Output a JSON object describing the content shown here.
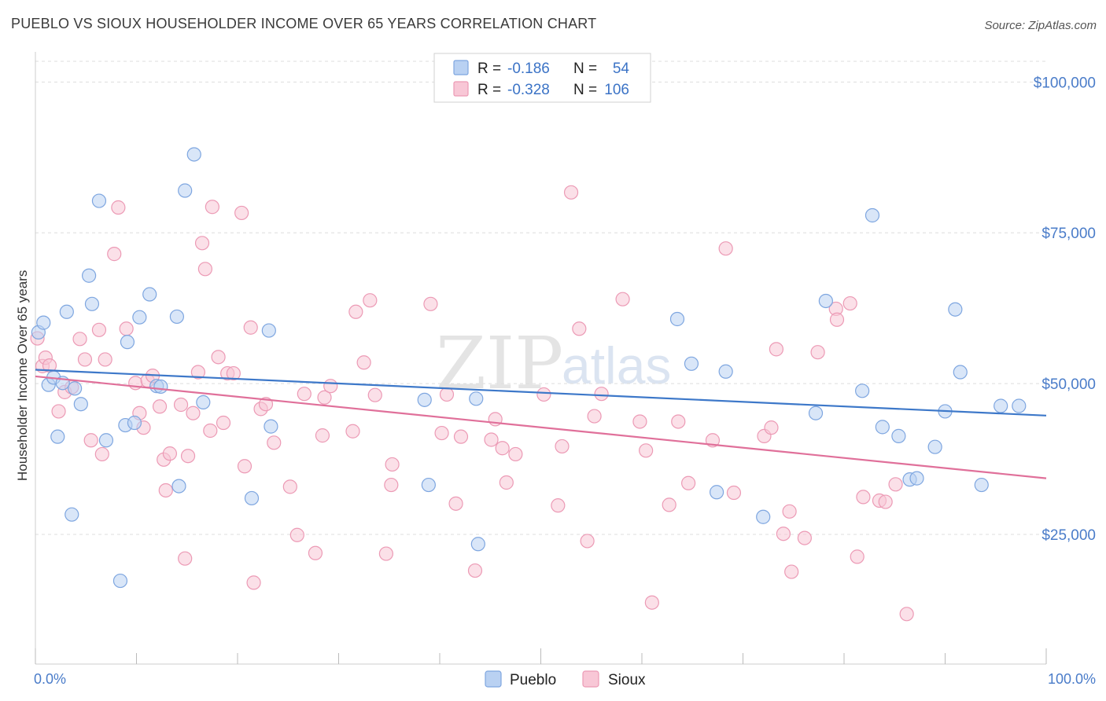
{
  "title": "PUEBLO VS SIOUX HOUSEHOLDER INCOME OVER 65 YEARS CORRELATION CHART",
  "source": "Source: ZipAtlas.com",
  "watermark": {
    "zip": "ZIP",
    "atlas": "atlas"
  },
  "colors": {
    "pueblo_fill": "#b9d1f2",
    "pueblo_stroke": "#7ea6e0",
    "pueblo_line": "#3d78c9",
    "sioux_fill": "#f8c7d6",
    "sioux_stroke": "#ec9ab5",
    "sioux_line": "#e0709a",
    "tick_text": "#4a7cc9",
    "grid": "#dddddd"
  },
  "legend": {
    "pueblo": {
      "r_label": "R =",
      "r_value": "-0.186",
      "n_label": "N =",
      "n_value": "54"
    },
    "sioux": {
      "r_label": "R =",
      "r_value": "-0.328",
      "n_label": "N =",
      "n_value": "106"
    }
  },
  "chart_data": {
    "type": "scatter",
    "title": "PUEBLO VS SIOUX HOUSEHOLDER INCOME OVER 65 YEARS CORRELATION CHART",
    "xlabel": "",
    "ylabel": "Householder Income Over 65 years",
    "xlim": [
      0,
      100
    ],
    "ylim": [
      3500,
      105000
    ],
    "x_tick_labels": [
      "0.0%",
      "100.0%"
    ],
    "y_ticks": [
      25000,
      50000,
      75000,
      100000
    ],
    "y_tick_labels": [
      "$25,000",
      "$50,000",
      "$75,000",
      "$100,000"
    ],
    "grid": true,
    "series": [
      {
        "name": "Pueblo",
        "trend": {
          "x": [
            0,
            100
          ],
          "y": [
            52300,
            44700
          ]
        },
        "points": [
          [
            0.3,
            58500
          ],
          [
            0.8,
            60100
          ],
          [
            1.3,
            49800
          ],
          [
            1.8,
            51000
          ],
          [
            2.2,
            41200
          ],
          [
            2.7,
            50100
          ],
          [
            3.1,
            61900
          ],
          [
            3.6,
            28300
          ],
          [
            3.9,
            49200
          ],
          [
            4.5,
            46600
          ],
          [
            5.3,
            67900
          ],
          [
            5.6,
            63200
          ],
          [
            6.3,
            80300
          ],
          [
            7.0,
            40600
          ],
          [
            8.4,
            17300
          ],
          [
            8.9,
            43100
          ],
          [
            9.1,
            56900
          ],
          [
            9.8,
            43500
          ],
          [
            10.3,
            61000
          ],
          [
            11.3,
            64800
          ],
          [
            12.0,
            49600
          ],
          [
            12.4,
            49500
          ],
          [
            14.0,
            61100
          ],
          [
            14.2,
            33000
          ],
          [
            14.8,
            82000
          ],
          [
            15.7,
            88000
          ],
          [
            16.6,
            46900
          ],
          [
            21.4,
            31000
          ],
          [
            23.1,
            58800
          ],
          [
            23.3,
            42900
          ],
          [
            38.5,
            47300
          ],
          [
            38.9,
            33200
          ],
          [
            43.6,
            47500
          ],
          [
            43.8,
            23400
          ],
          [
            63.5,
            60700
          ],
          [
            64.9,
            53300
          ],
          [
            67.4,
            32000
          ],
          [
            68.3,
            52000
          ],
          [
            72.0,
            27900
          ],
          [
            77.2,
            45100
          ],
          [
            78.2,
            63700
          ],
          [
            81.8,
            48800
          ],
          [
            82.8,
            77900
          ],
          [
            83.8,
            42800
          ],
          [
            85.4,
            41300
          ],
          [
            86.5,
            34100
          ],
          [
            87.2,
            34300
          ],
          [
            89.0,
            39500
          ],
          [
            90.0,
            45400
          ],
          [
            91.0,
            62300
          ],
          [
            91.5,
            51900
          ],
          [
            93.6,
            33200
          ],
          [
            95.5,
            46300
          ],
          [
            97.3,
            46300
          ]
        ]
      },
      {
        "name": "Sioux",
        "trend": {
          "x": [
            0,
            100
          ],
          "y": [
            51200,
            34300
          ]
        },
        "points": [
          [
            0.2,
            57500
          ],
          [
            0.7,
            52900
          ],
          [
            1.0,
            54300
          ],
          [
            1.4,
            53000
          ],
          [
            2.3,
            45400
          ],
          [
            2.9,
            48600
          ],
          [
            3.6,
            49400
          ],
          [
            4.4,
            57400
          ],
          [
            4.9,
            54000
          ],
          [
            5.5,
            40600
          ],
          [
            6.3,
            58900
          ],
          [
            6.6,
            38300
          ],
          [
            6.9,
            54000
          ],
          [
            7.8,
            71500
          ],
          [
            8.2,
            79200
          ],
          [
            9.0,
            59100
          ],
          [
            9.9,
            50100
          ],
          [
            10.3,
            45100
          ],
          [
            10.7,
            42700
          ],
          [
            11.1,
            50500
          ],
          [
            11.6,
            51300
          ],
          [
            12.3,
            46200
          ],
          [
            12.7,
            37400
          ],
          [
            12.9,
            32300
          ],
          [
            13.3,
            38400
          ],
          [
            14.4,
            46500
          ],
          [
            14.8,
            21000
          ],
          [
            15.1,
            38000
          ],
          [
            15.6,
            45100
          ],
          [
            16.1,
            51900
          ],
          [
            16.5,
            73300
          ],
          [
            16.8,
            69000
          ],
          [
            17.3,
            42200
          ],
          [
            17.5,
            79300
          ],
          [
            18.1,
            54400
          ],
          [
            18.6,
            43500
          ],
          [
            19.0,
            51700
          ],
          [
            19.6,
            51700
          ],
          [
            20.4,
            78300
          ],
          [
            20.7,
            36300
          ],
          [
            21.3,
            59300
          ],
          [
            21.6,
            17000
          ],
          [
            22.3,
            45800
          ],
          [
            22.8,
            46600
          ],
          [
            23.6,
            40200
          ],
          [
            25.2,
            32900
          ],
          [
            25.9,
            24900
          ],
          [
            26.6,
            48300
          ],
          [
            27.7,
            21900
          ],
          [
            28.4,
            41400
          ],
          [
            28.6,
            47700
          ],
          [
            29.2,
            49600
          ],
          [
            31.4,
            42100
          ],
          [
            31.7,
            61900
          ],
          [
            32.5,
            53500
          ],
          [
            33.1,
            63800
          ],
          [
            33.6,
            48100
          ],
          [
            34.7,
            21800
          ],
          [
            35.2,
            33200
          ],
          [
            35.3,
            36600
          ],
          [
            39.1,
            63200
          ],
          [
            40.2,
            41800
          ],
          [
            40.7,
            48200
          ],
          [
            41.6,
            30100
          ],
          [
            42.1,
            41200
          ],
          [
            43.5,
            19000
          ],
          [
            45.1,
            40700
          ],
          [
            45.5,
            44100
          ],
          [
            46.2,
            39300
          ],
          [
            46.6,
            33600
          ],
          [
            47.5,
            38300
          ],
          [
            50.3,
            48200
          ],
          [
            51.7,
            29800
          ],
          [
            52.1,
            39600
          ],
          [
            53.0,
            81700
          ],
          [
            53.8,
            59100
          ],
          [
            54.6,
            23900
          ],
          [
            55.3,
            44600
          ],
          [
            56.0,
            48300
          ],
          [
            58.1,
            64000
          ],
          [
            59.8,
            43700
          ],
          [
            60.4,
            38900
          ],
          [
            61.0,
            13700
          ],
          [
            62.7,
            29900
          ],
          [
            63.6,
            43700
          ],
          [
            64.6,
            33500
          ],
          [
            67.0,
            40600
          ],
          [
            68.3,
            72400
          ],
          [
            69.1,
            31900
          ],
          [
            72.1,
            41300
          ],
          [
            72.8,
            42700
          ],
          [
            73.3,
            55700
          ],
          [
            74.0,
            25100
          ],
          [
            74.6,
            28800
          ],
          [
            74.8,
            18800
          ],
          [
            76.1,
            24400
          ],
          [
            77.4,
            55200
          ],
          [
            79.2,
            62400
          ],
          [
            79.3,
            60600
          ],
          [
            80.6,
            63300
          ],
          [
            81.3,
            21300
          ],
          [
            81.9,
            31200
          ],
          [
            83.5,
            30600
          ],
          [
            84.1,
            30400
          ],
          [
            85.1,
            33300
          ],
          [
            86.2,
            11800
          ]
        ]
      }
    ]
  },
  "bottom_legend": {
    "pueblo": "Pueblo",
    "sioux": "Sioux"
  }
}
